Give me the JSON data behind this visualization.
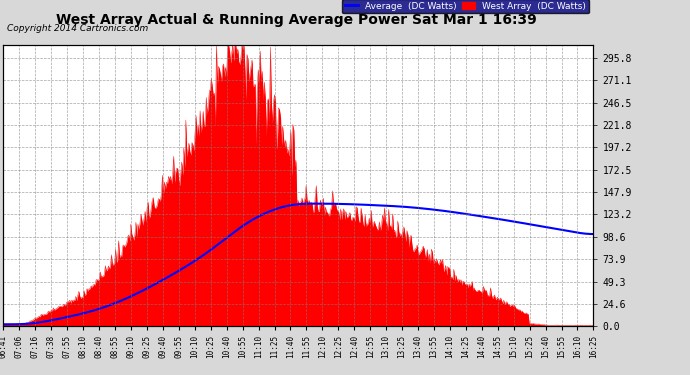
{
  "title": "West Array Actual & Running Average Power Sat Mar 1 16:39",
  "copyright": "Copyright 2014 Cartronics.com",
  "background_color": "#d8d8d8",
  "plot_bg_color": "#ffffff",
  "yticks": [
    0.0,
    24.6,
    49.3,
    73.9,
    98.6,
    123.2,
    147.9,
    172.5,
    197.2,
    221.8,
    246.5,
    271.1,
    295.8
  ],
  "ymax": 310,
  "legend_labels": [
    "Average  (DC Watts)",
    "West Array  (DC Watts)"
  ],
  "legend_colors": [
    "#0000ff",
    "#ff0000"
  ],
  "x_tick_labels": [
    "06:41",
    "07:06",
    "07:16",
    "07:38",
    "07:55",
    "08:10",
    "08:40",
    "08:55",
    "09:10",
    "09:25",
    "09:40",
    "09:55",
    "10:10",
    "10:25",
    "10:40",
    "10:55",
    "11:10",
    "11:25",
    "11:40",
    "11:55",
    "12:10",
    "12:25",
    "12:40",
    "12:55",
    "13:10",
    "13:25",
    "13:40",
    "13:55",
    "14:10",
    "14:25",
    "14:40",
    "14:55",
    "15:10",
    "15:25",
    "15:40",
    "15:55",
    "16:10",
    "16:25"
  ]
}
